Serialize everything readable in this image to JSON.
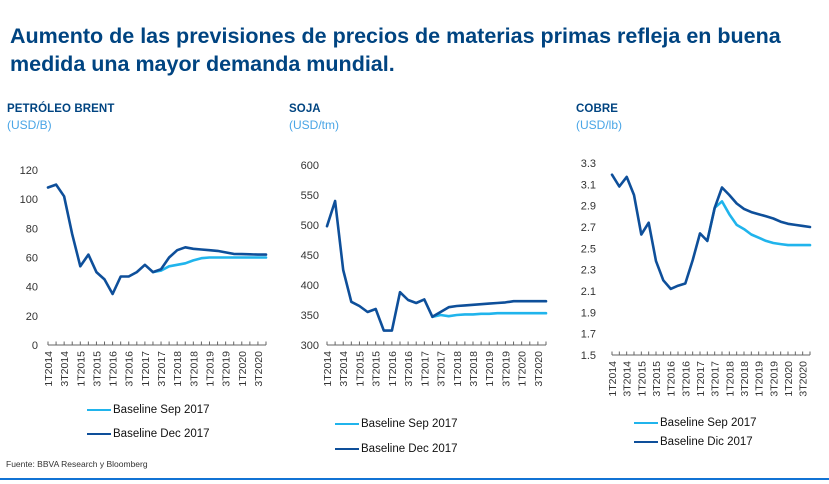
{
  "title": "Aumento de las previsiones de precios de materias primas refleja en buena medida una mayor demanda mundial.",
  "source": "Fuente: BBVA Research y Bloomberg",
  "colors": {
    "title": "#004481",
    "unit": "#49a5e6",
    "sep": "#20b4ec",
    "dec": "#0e4f9a",
    "axis": "#666666"
  },
  "chart_data": [
    {
      "type": "line",
      "title": "PETRÓLEO BRENT",
      "unit": "(USD/B)",
      "ylim": [
        0,
        120
      ],
      "yticks": [
        "0",
        "20",
        "40",
        "60",
        "80",
        "100",
        "120"
      ],
      "ytick_values": [
        0,
        20,
        40,
        60,
        80,
        100,
        120
      ],
      "xtick_labels": [
        "1T2014",
        "3T2014",
        "1T2015",
        "3T2015",
        "1T2016",
        "3T2016",
        "1T2017",
        "3T2017",
        "1T2018",
        "3T2018",
        "1T2019",
        "3T2019",
        "1T2020",
        "3T2020"
      ],
      "n_points": 28,
      "legend": [
        "Baseline Sep 2017",
        "Baseline Dec 2017"
      ],
      "series": [
        {
          "name": "Baseline Dec 2017",
          "x": [
            0,
            1,
            2,
            3,
            4,
            5,
            6,
            7,
            8,
            9,
            10,
            11,
            12,
            13,
            14,
            15,
            16,
            17,
            18,
            19,
            20,
            21,
            22,
            23,
            24,
            25,
            26,
            27
          ],
          "values": [
            108,
            110,
            102,
            76,
            54,
            62,
            50,
            45,
            35,
            47,
            47,
            50,
            55,
            50,
            52,
            60,
            65,
            67,
            66,
            65.5,
            65,
            64.5,
            63.5,
            62.5,
            62.3,
            62.2,
            62,
            62
          ]
        },
        {
          "name": "Baseline Sep 2017",
          "x": [
            13,
            14,
            15,
            16,
            17,
            18,
            19,
            20,
            21,
            22,
            23,
            24,
            25,
            26,
            27
          ],
          "values": [
            50,
            51,
            54,
            55,
            56,
            58,
            59.5,
            60,
            60,
            60,
            60,
            60,
            60,
            60,
            60
          ]
        }
      ]
    },
    {
      "type": "line",
      "title": "SOJA",
      "unit": "(USD/tm)",
      "ylim": [
        300,
        600
      ],
      "yticks": [
        "300",
        "350",
        "400",
        "450",
        "500",
        "550",
        "600"
      ],
      "ytick_values": [
        300,
        350,
        400,
        450,
        500,
        550,
        600
      ],
      "xtick_labels": [
        "1T2014",
        "3T2014",
        "1T2015",
        "3T2015",
        "1T2016",
        "3T2016",
        "1T2017",
        "3T2017",
        "1T2018",
        "3T2018",
        "1T2019",
        "3T2019",
        "1T2020",
        "3T2020"
      ],
      "n_points": 28,
      "legend": [
        "Baseline Sep 2017",
        "Baseline Dec 2017"
      ],
      "series": [
        {
          "name": "Baseline Dec 2017",
          "x": [
            0,
            1,
            2,
            3,
            4,
            5,
            6,
            7,
            8,
            9,
            10,
            11,
            12,
            13,
            14,
            15,
            16,
            17,
            18,
            19,
            20,
            21,
            22,
            23,
            24,
            25,
            26,
            27
          ],
          "values": [
            498,
            540,
            425,
            372,
            365,
            355,
            360,
            324,
            324,
            388,
            375,
            370,
            376,
            347,
            355,
            363,
            365,
            366,
            367,
            368,
            369,
            370,
            371,
            373,
            373,
            373,
            373,
            373
          ]
        },
        {
          "name": "Baseline Sep 2017",
          "x": [
            13,
            14,
            15,
            16,
            17,
            18,
            19,
            20,
            21,
            22,
            23,
            24,
            25,
            26,
            27
          ],
          "values": [
            347,
            350,
            348,
            350,
            351,
            351,
            352,
            352,
            353,
            353,
            353,
            353,
            353,
            353,
            353
          ]
        }
      ]
    },
    {
      "type": "line",
      "title": "COBRE",
      "unit": "(USD/lb)",
      "ylim": [
        1.5,
        3.3
      ],
      "yticks": [
        "1.5",
        "1.7",
        "1.9",
        "2.1",
        "2.3",
        "2.5",
        "2.7",
        "2.9",
        "3.1",
        "3.3"
      ],
      "ytick_values": [
        1.5,
        1.7,
        1.9,
        2.1,
        2.3,
        2.5,
        2.7,
        2.9,
        3.1,
        3.3
      ],
      "xtick_labels": [
        "1T2014",
        "3T2014",
        "1T2015",
        "3T2015",
        "1T2016",
        "3T2016",
        "1T2017",
        "3T2017",
        "1T2018",
        "3T2018",
        "1T2019",
        "3T2019",
        "1T2020",
        "3T2020"
      ],
      "n_points": 28,
      "legend": [
        "Baseline Sep 2017",
        "Baseline Dic 2017"
      ],
      "series": [
        {
          "name": "Baseline Dic 2017",
          "x": [
            0,
            1,
            2,
            3,
            4,
            5,
            6,
            7,
            8,
            9,
            10,
            11,
            12,
            13,
            14,
            15,
            16,
            17,
            18,
            19,
            20,
            21,
            22,
            23,
            24,
            25,
            26,
            27
          ],
          "values": [
            3.19,
            3.08,
            3.17,
            3.0,
            2.63,
            2.74,
            2.38,
            2.2,
            2.12,
            2.15,
            2.17,
            2.39,
            2.64,
            2.57,
            2.88,
            3.07,
            3.0,
            2.92,
            2.87,
            2.84,
            2.82,
            2.8,
            2.78,
            2.75,
            2.73,
            2.72,
            2.71,
            2.7
          ]
        },
        {
          "name": "Baseline Sep 2017",
          "x": [
            13,
            14,
            15,
            16,
            17,
            18,
            19,
            20,
            21,
            22,
            23,
            24,
            25,
            26,
            27
          ],
          "values": [
            2.57,
            2.88,
            2.94,
            2.82,
            2.72,
            2.68,
            2.63,
            2.6,
            2.57,
            2.55,
            2.54,
            2.53,
            2.53,
            2.53,
            2.53
          ]
        }
      ]
    }
  ]
}
